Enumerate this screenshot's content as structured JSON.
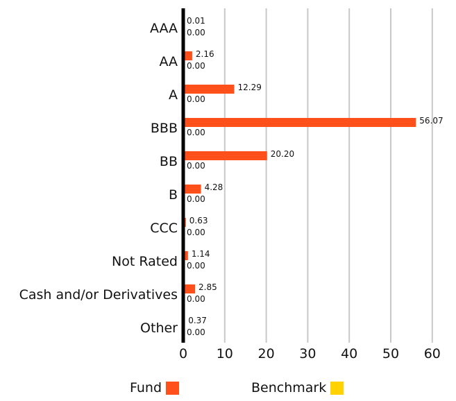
{
  "chart_data": {
    "type": "bar",
    "orientation": "horizontal",
    "categories": [
      "AAA",
      "AA",
      "A",
      "BBB",
      "BB",
      "B",
      "CCC",
      "Not Rated",
      "Cash and/or Derivatives",
      "Other"
    ],
    "series": [
      {
        "name": "Fund",
        "color": "#ff4f1a",
        "values": [
          0.01,
          2.16,
          12.29,
          56.07,
          20.2,
          4.28,
          0.63,
          1.14,
          2.85,
          0.37
        ],
        "labels": [
          "0.01",
          "2.16",
          "12.29",
          "56.07",
          "20.20",
          "4.28",
          "0.63",
          "1.14",
          "2.85",
          "0.37"
        ]
      },
      {
        "name": "Benchmark",
        "color": "#ffd200",
        "values": [
          0,
          0,
          0,
          0,
          0,
          0,
          0,
          0,
          0,
          0
        ],
        "labels": [
          "0.00",
          "0.00",
          "0.00",
          "0.00",
          "0.00",
          "0.00",
          "0.00",
          "0.00",
          "0.00",
          "0.00"
        ]
      }
    ],
    "xlim": [
      0,
      60
    ],
    "xticks": [
      "0",
      "10",
      "20",
      "30",
      "40",
      "50",
      "60"
    ],
    "grid": true,
    "legend_position": "bottom"
  }
}
